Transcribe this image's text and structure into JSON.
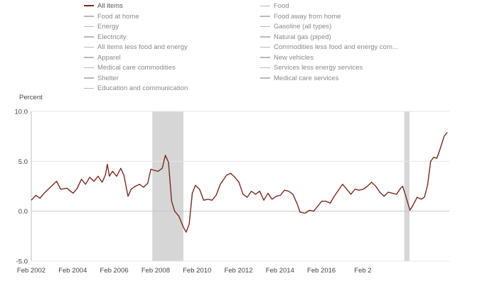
{
  "legend": {
    "items": [
      {
        "label": "All items",
        "active": true
      },
      {
        "label": "Food",
        "active": false
      },
      {
        "label": "Food at home",
        "active": false
      },
      {
        "label": "Food away from home",
        "active": false
      },
      {
        "label": "Energy",
        "active": false
      },
      {
        "label": "Gasoline (all types)",
        "active": false
      },
      {
        "label": "Electricity",
        "active": false
      },
      {
        "label": "Natural gas (piped)",
        "active": false
      },
      {
        "label": "All items less food and energy",
        "active": false
      },
      {
        "label": "Commodities less food and energy com...",
        "active": false
      },
      {
        "label": "Apparel",
        "active": false
      },
      {
        "label": "New vehicles",
        "active": false
      },
      {
        "label": "Medical care commodities",
        "active": false
      },
      {
        "label": "Services less energy services",
        "active": false
      },
      {
        "label": "Shelter",
        "active": false
      },
      {
        "label": "Medical care services",
        "active": false
      },
      {
        "label": "Education and communication",
        "active": false
      }
    ]
  },
  "chart_data": {
    "type": "line",
    "ylabel": "Percent",
    "ylim": [
      -5.0,
      10.0
    ],
    "yticks": [
      "10.0",
      "5.0",
      "0.0",
      "-5.0"
    ],
    "xlim": [
      2002.08,
      2022.25
    ],
    "xticks": [
      {
        "label": "Feb 2002",
        "x": 2002.08
      },
      {
        "label": "Feb 2004",
        "x": 2004.08
      },
      {
        "label": "Feb 2006",
        "x": 2006.08
      },
      {
        "label": "Feb 2008",
        "x": 2008.08
      },
      {
        "label": "Feb 2010",
        "x": 2010.08
      },
      {
        "label": "Feb 2012",
        "x": 2012.08
      },
      {
        "label": "Feb 2014",
        "x": 2014.08
      },
      {
        "label": "Feb 2016",
        "x": 2016.08
      },
      {
        "label": "Feb 2",
        "x": 2018.08
      }
    ],
    "recessions": [
      [
        2007.92,
        2009.42
      ],
      [
        2020.08,
        2020.33
      ]
    ],
    "colors": {
      "series": "#7a2a1e",
      "recession": "#d6d6d6",
      "grid": "#e6e6e6",
      "zero": "#c8c8c8"
    },
    "series": [
      {
        "name": "All items",
        "points": [
          [
            2002.08,
            1.1
          ],
          [
            2002.3,
            1.6
          ],
          [
            2002.5,
            1.3
          ],
          [
            2002.7,
            1.8
          ],
          [
            2002.9,
            2.2
          ],
          [
            2003.1,
            2.6
          ],
          [
            2003.3,
            3.0
          ],
          [
            2003.5,
            2.2
          ],
          [
            2003.8,
            2.3
          ],
          [
            2004.1,
            1.8
          ],
          [
            2004.3,
            2.3
          ],
          [
            2004.5,
            3.2
          ],
          [
            2004.7,
            2.7
          ],
          [
            2004.9,
            3.4
          ],
          [
            2005.1,
            3.0
          ],
          [
            2005.3,
            3.5
          ],
          [
            2005.5,
            2.9
          ],
          [
            2005.65,
            3.6
          ],
          [
            2005.75,
            4.7
          ],
          [
            2005.85,
            3.5
          ],
          [
            2006.0,
            4.0
          ],
          [
            2006.2,
            3.5
          ],
          [
            2006.4,
            4.3
          ],
          [
            2006.55,
            3.6
          ],
          [
            2006.75,
            1.5
          ],
          [
            2006.9,
            2.2
          ],
          [
            2007.1,
            2.5
          ],
          [
            2007.3,
            2.7
          ],
          [
            2007.5,
            2.4
          ],
          [
            2007.7,
            2.8
          ],
          [
            2007.85,
            4.2
          ],
          [
            2008.0,
            4.1
          ],
          [
            2008.2,
            4.0
          ],
          [
            2008.4,
            4.3
          ],
          [
            2008.55,
            5.6
          ],
          [
            2008.7,
            4.9
          ],
          [
            2008.85,
            1.0
          ],
          [
            2009.0,
            0.0
          ],
          [
            2009.2,
            -0.5
          ],
          [
            2009.4,
            -1.5
          ],
          [
            2009.55,
            -2.1
          ],
          [
            2009.7,
            -1.3
          ],
          [
            2009.85,
            1.8
          ],
          [
            2010.0,
            2.6
          ],
          [
            2010.2,
            2.2
          ],
          [
            2010.4,
            1.1
          ],
          [
            2010.6,
            1.2
          ],
          [
            2010.8,
            1.1
          ],
          [
            2011.0,
            1.6
          ],
          [
            2011.2,
            2.7
          ],
          [
            2011.5,
            3.6
          ],
          [
            2011.7,
            3.8
          ],
          [
            2011.9,
            3.4
          ],
          [
            2012.1,
            2.9
          ],
          [
            2012.3,
            1.7
          ],
          [
            2012.5,
            1.4
          ],
          [
            2012.7,
            2.0
          ],
          [
            2012.9,
            1.7
          ],
          [
            2013.1,
            2.0
          ],
          [
            2013.3,
            1.1
          ],
          [
            2013.5,
            1.8
          ],
          [
            2013.7,
            1.2
          ],
          [
            2013.9,
            1.5
          ],
          [
            2014.1,
            1.6
          ],
          [
            2014.3,
            2.1
          ],
          [
            2014.5,
            2.0
          ],
          [
            2014.7,
            1.7
          ],
          [
            2014.9,
            0.8
          ],
          [
            2015.05,
            -0.1
          ],
          [
            2015.3,
            -0.2
          ],
          [
            2015.5,
            0.1
          ],
          [
            2015.7,
            0.0
          ],
          [
            2015.9,
            0.5
          ],
          [
            2016.1,
            1.0
          ],
          [
            2016.3,
            1.0
          ],
          [
            2016.5,
            0.8
          ],
          [
            2016.7,
            1.5
          ],
          [
            2016.9,
            2.1
          ],
          [
            2017.1,
            2.7
          ],
          [
            2017.3,
            2.2
          ],
          [
            2017.5,
            1.7
          ],
          [
            2017.7,
            2.2
          ],
          [
            2017.9,
            2.1
          ],
          [
            2018.1,
            2.2
          ],
          [
            2018.3,
            2.5
          ],
          [
            2018.5,
            2.9
          ],
          [
            2018.7,
            2.5
          ],
          [
            2018.9,
            1.9
          ],
          [
            2019.1,
            1.5
          ],
          [
            2019.3,
            1.9
          ],
          [
            2019.5,
            1.8
          ],
          [
            2019.7,
            1.7
          ],
          [
            2019.9,
            2.3
          ],
          [
            2020.0,
            2.5
          ],
          [
            2020.15,
            1.5
          ],
          [
            2020.35,
            0.1
          ],
          [
            2020.5,
            0.6
          ],
          [
            2020.7,
            1.4
          ],
          [
            2020.9,
            1.2
          ],
          [
            2021.05,
            1.4
          ],
          [
            2021.2,
            2.6
          ],
          [
            2021.35,
            5.0
          ],
          [
            2021.5,
            5.4
          ],
          [
            2021.65,
            5.3
          ],
          [
            2021.8,
            6.2
          ],
          [
            2022.0,
            7.5
          ],
          [
            2022.15,
            7.9
          ]
        ]
      }
    ]
  }
}
